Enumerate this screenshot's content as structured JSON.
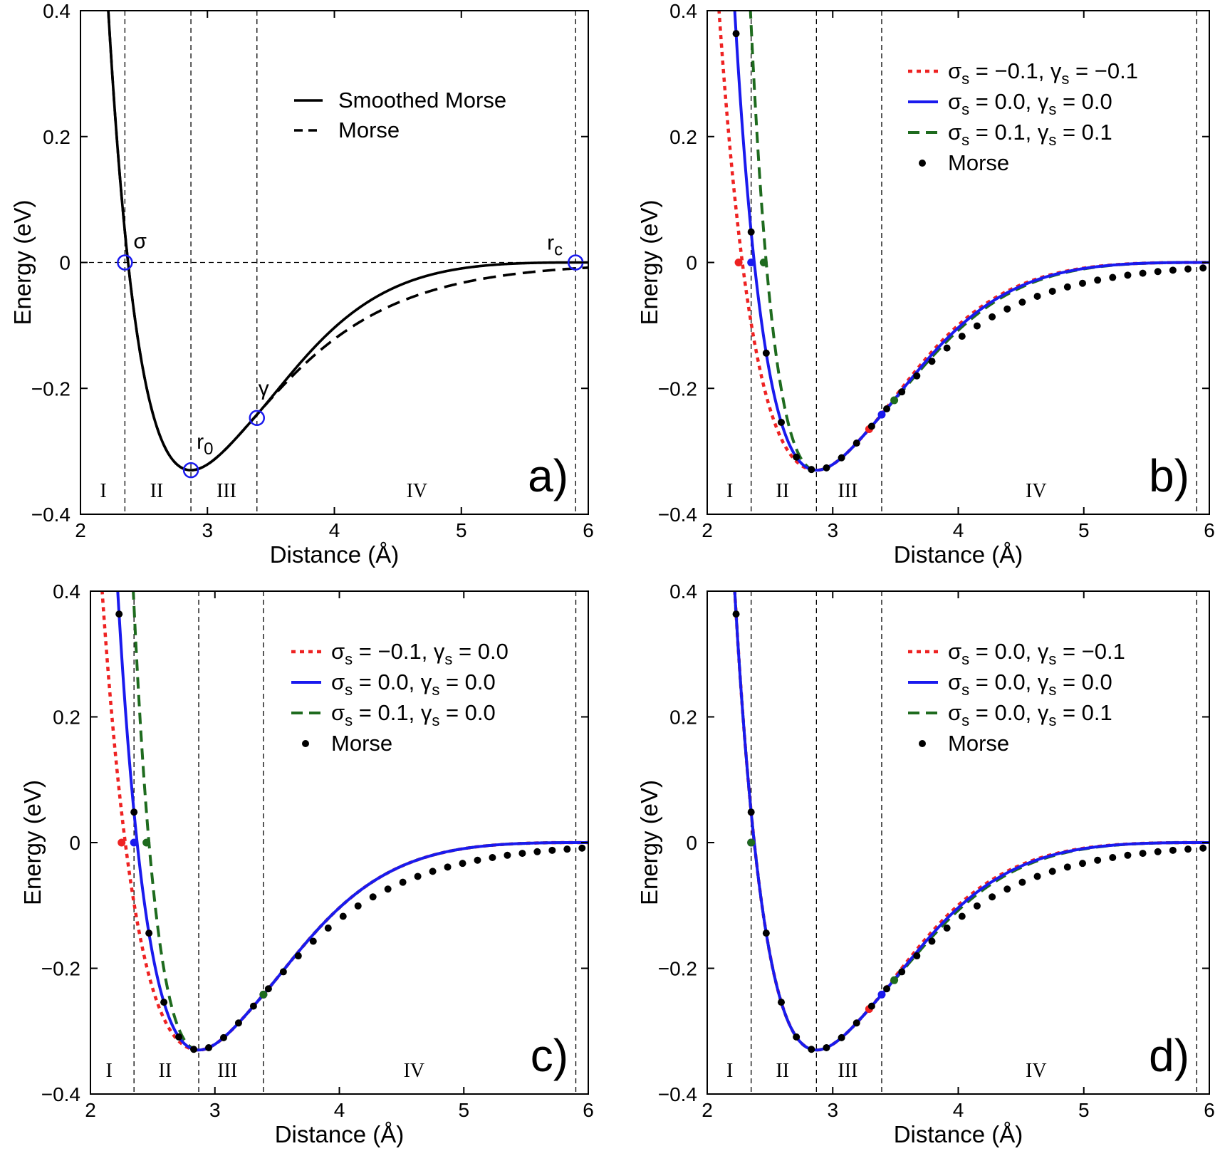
{
  "chart_data": [
    {
      "type": "line",
      "panel_label": "a)",
      "xlabel": "Distance (Å)",
      "ylabel": "Energy (eV)",
      "xlim": [
        2,
        6
      ],
      "ylim": [
        -0.4,
        0.4
      ],
      "xticks": [
        "2",
        "3",
        "4",
        "5",
        "6"
      ],
      "yticks": [
        "−0.4",
        "−0.2",
        "0",
        "0.2",
        "0.4"
      ],
      "grid": false,
      "legend_position": "top-right",
      "params": {
        "D": 0.33,
        "alpha": 1.4,
        "r0": 2.87,
        "rc": 5.9,
        "sigma": 2.35,
        "gamma": 3.39
      },
      "series": [
        {
          "name": "Smoothed Morse",
          "style": "solid",
          "color": "#000000",
          "kind": "smoothed"
        },
        {
          "name": "Morse",
          "style": "dashed",
          "color": "#000000",
          "kind": "morse"
        }
      ],
      "markers": [
        {
          "label": "σ",
          "x": 2.35,
          "y": 0.0
        },
        {
          "label": "r0",
          "x": 2.87,
          "y": -0.33
        },
        {
          "label": "γ",
          "x": 3.39,
          "y": -0.247
        },
        {
          "label": "rc",
          "x": 5.9,
          "y": 0.0
        }
      ],
      "marker_labels": {
        "sigma": "σ",
        "r0_main": "r",
        "r0_sub": "0",
        "gamma": "γ",
        "rc_main": "r",
        "rc_sub": "c"
      },
      "vlines": [
        2.35,
        2.87,
        3.39,
        5.9
      ],
      "hline": 0,
      "regions": [
        {
          "label": "I",
          "x": 2.18
        },
        {
          "label": "II",
          "x": 2.6
        },
        {
          "label": "III",
          "x": 3.15
        },
        {
          "label": "IV",
          "x": 4.65
        }
      ]
    },
    {
      "type": "line",
      "panel_label": "b)",
      "xlabel": "Distance (Å)",
      "ylabel": "Energy (eV)",
      "xlim": [
        2,
        6
      ],
      "ylim": [
        -0.4,
        0.4
      ],
      "xticks": [
        "2",
        "3",
        "4",
        "5",
        "6"
      ],
      "yticks": [
        "−0.4",
        "−0.2",
        "0",
        "0.2",
        "0.4"
      ],
      "grid": false,
      "legend_position": "top-right",
      "params": {
        "D": 0.33,
        "alpha": 1.4,
        "r0": 2.87,
        "rc": 5.9,
        "sigma": 2.35,
        "gamma": 3.39
      },
      "series": [
        {
          "name": "σs = −0.1, γs = −0.1",
          "legend": {
            "a": "−0.1",
            "b": "−0.1"
          },
          "style": "dotted",
          "color": "#ee2222",
          "sigma": 2.25,
          "gamma": 3.29
        },
        {
          "name": "σs = 0.0, γs = 0.0",
          "legend": {
            "a": "0.0",
            "b": "0.0"
          },
          "style": "solid",
          "color": "#1a1aee",
          "sigma": 2.35,
          "gamma": 3.39
        },
        {
          "name": "σs = 0.1, γs = 0.1",
          "legend": {
            "a": "0.1",
            "b": "0.1"
          },
          "style": "dashed",
          "color": "#1e6b1e",
          "sigma": 2.45,
          "gamma": 3.49
        },
        {
          "name": "Morse",
          "style": "dots",
          "color": "#000000",
          "kind": "morse"
        }
      ],
      "morse_points_x": [
        2.23,
        2.35,
        2.47,
        2.59,
        2.71,
        2.83,
        2.95,
        3.07,
        3.19,
        3.31,
        3.43,
        3.55,
        3.67,
        3.79,
        3.91,
        4.03,
        4.15,
        4.27,
        4.39,
        4.51,
        4.63,
        4.75,
        4.87,
        4.99,
        5.11,
        5.23,
        5.35,
        5.47,
        5.59,
        5.71,
        5.83,
        5.95
      ],
      "vlines": [
        2.35,
        2.87,
        3.39,
        5.9
      ],
      "regions": [
        {
          "label": "I",
          "x": 2.18
        },
        {
          "label": "II",
          "x": 2.6
        },
        {
          "label": "III",
          "x": 3.12
        },
        {
          "label": "IV",
          "x": 4.62
        }
      ]
    },
    {
      "type": "line",
      "panel_label": "c)",
      "xlabel": "Distance (Å)",
      "ylabel": "Energy (eV)",
      "xlim": [
        2,
        6
      ],
      "ylim": [
        -0.4,
        0.4
      ],
      "xticks": [
        "2",
        "3",
        "4",
        "5",
        "6"
      ],
      "yticks": [
        "−0.4",
        "−0.2",
        "0",
        "0.2",
        "0.4"
      ],
      "grid": false,
      "legend_position": "top-right",
      "params": {
        "D": 0.33,
        "alpha": 1.4,
        "r0": 2.87,
        "rc": 5.9,
        "sigma": 2.35,
        "gamma": 3.39
      },
      "series": [
        {
          "name": "σs = −0.1, γs = 0.0",
          "legend": {
            "a": "−0.1",
            "b": "0.0"
          },
          "style": "dotted",
          "color": "#ee2222",
          "sigma": 2.25,
          "gamma": 3.39
        },
        {
          "name": "σs = 0.0, γs = 0.0",
          "legend": {
            "a": "0.0",
            "b": "0.0"
          },
          "style": "solid",
          "color": "#1a1aee",
          "sigma": 2.35,
          "gamma": 3.39
        },
        {
          "name": "σs = 0.1, γs = 0.0",
          "legend": {
            "a": "0.1",
            "b": "0.0"
          },
          "style": "dashed",
          "color": "#1e6b1e",
          "sigma": 2.45,
          "gamma": 3.39
        },
        {
          "name": "Morse",
          "style": "dots",
          "color": "#000000",
          "kind": "morse"
        }
      ],
      "morse_points_x": [
        2.23,
        2.35,
        2.47,
        2.59,
        2.71,
        2.83,
        2.95,
        3.07,
        3.19,
        3.31,
        3.43,
        3.55,
        3.67,
        3.79,
        3.91,
        4.03,
        4.15,
        4.27,
        4.39,
        4.51,
        4.63,
        4.75,
        4.87,
        4.99,
        5.11,
        5.23,
        5.35,
        5.47,
        5.59,
        5.71,
        5.83,
        5.95
      ],
      "vlines": [
        2.35,
        2.87,
        3.39,
        5.9
      ],
      "regions": [
        {
          "label": "I",
          "x": 2.15
        },
        {
          "label": "II",
          "x": 2.6
        },
        {
          "label": "III",
          "x": 3.1
        },
        {
          "label": "IV",
          "x": 4.6
        }
      ]
    },
    {
      "type": "line",
      "panel_label": "d)",
      "xlabel": "Distance (Å)",
      "ylabel": "Energy (eV)",
      "xlim": [
        2,
        6
      ],
      "ylim": [
        -0.4,
        0.4
      ],
      "xticks": [
        "2",
        "3",
        "4",
        "5",
        "6"
      ],
      "yticks": [
        "−0.4",
        "−0.2",
        "0",
        "0.2",
        "0.4"
      ],
      "grid": false,
      "legend_position": "top-right",
      "params": {
        "D": 0.33,
        "alpha": 1.4,
        "r0": 2.87,
        "rc": 5.9,
        "sigma": 2.35,
        "gamma": 3.39
      },
      "series": [
        {
          "name": "σs = 0.0, γs = −0.1",
          "legend": {
            "a": "0.0",
            "b": "−0.1"
          },
          "style": "dotted",
          "color": "#ee2222",
          "sigma": 2.35,
          "gamma": 3.29
        },
        {
          "name": "σs = 0.0, γs = 0.0",
          "legend": {
            "a": "0.0",
            "b": "0.0"
          },
          "style": "solid",
          "color": "#1a1aee",
          "sigma": 2.35,
          "gamma": 3.39
        },
        {
          "name": "σs = 0.0, γs = 0.1",
          "legend": {
            "a": "0.0",
            "b": "0.1"
          },
          "style": "dashed",
          "color": "#1e6b1e",
          "sigma": 2.35,
          "gamma": 3.49
        },
        {
          "name": "Morse",
          "style": "dots",
          "color": "#000000",
          "kind": "morse"
        }
      ],
      "morse_points_x": [
        2.23,
        2.35,
        2.47,
        2.59,
        2.71,
        2.83,
        2.95,
        3.07,
        3.19,
        3.31,
        3.43,
        3.55,
        3.67,
        3.79,
        3.91,
        4.03,
        4.15,
        4.27,
        4.39,
        4.51,
        4.63,
        4.75,
        4.87,
        4.99,
        5.11,
        5.23,
        5.35,
        5.47,
        5.59,
        5.71,
        5.83,
        5.95
      ],
      "vlines": [
        2.35,
        2.87,
        3.39,
        5.9
      ],
      "regions": [
        {
          "label": "I",
          "x": 2.18
        },
        {
          "label": "II",
          "x": 2.6
        },
        {
          "label": "III",
          "x": 3.12
        },
        {
          "label": "IV",
          "x": 4.62
        }
      ]
    }
  ]
}
